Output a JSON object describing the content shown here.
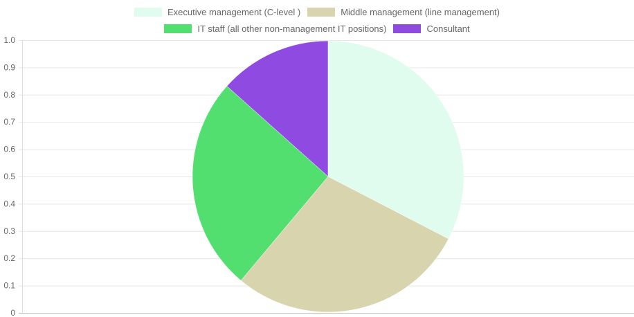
{
  "chart_data": {
    "type": "pie",
    "categories": [
      "Executive management (C-level )",
      "Middle management (line management)",
      "IT staff (all other non-management IT positions)",
      "Consultant"
    ],
    "values": [
      0.326,
      0.285,
      0.255,
      0.134
    ],
    "colors": [
      "#e0fcee",
      "#d8d5ae",
      "#52df6f",
      "#8f4be1"
    ],
    "legend": "top",
    "y_ticks": [
      "0",
      "0.1",
      "0.2",
      "0.3",
      "0.4",
      "0.5",
      "0.6",
      "0.7",
      "0.8",
      "0.9",
      "1.0"
    ],
    "ylim": [
      0,
      1
    ],
    "grid": true
  }
}
